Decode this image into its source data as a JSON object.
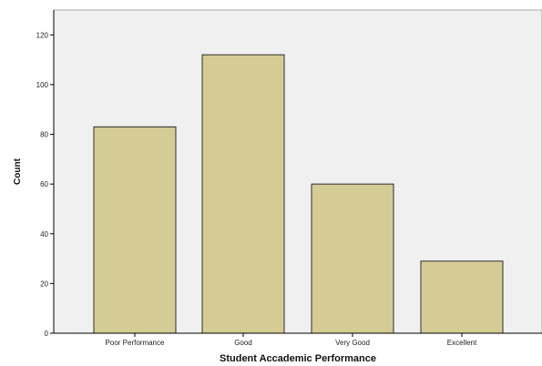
{
  "chart_data": {
    "type": "bar",
    "categories": [
      "Poor Performance",
      "Good",
      "Very Good",
      "Excellent"
    ],
    "values": [
      83,
      112,
      60,
      29
    ],
    "title": "",
    "xlabel": "Student Accademic Performance",
    "ylabel": "Count",
    "ylim": [
      0,
      130
    ],
    "yticks": [
      0,
      20,
      40,
      60,
      80,
      100,
      120
    ],
    "grid": false,
    "legend": "none",
    "colors": {
      "bar_fill": "#d4cc94",
      "bar_stroke": "#2b2b2b",
      "plot_background": "#f0f0f0",
      "plot_border": "#a8a8a8",
      "axis": "#000000"
    }
  }
}
